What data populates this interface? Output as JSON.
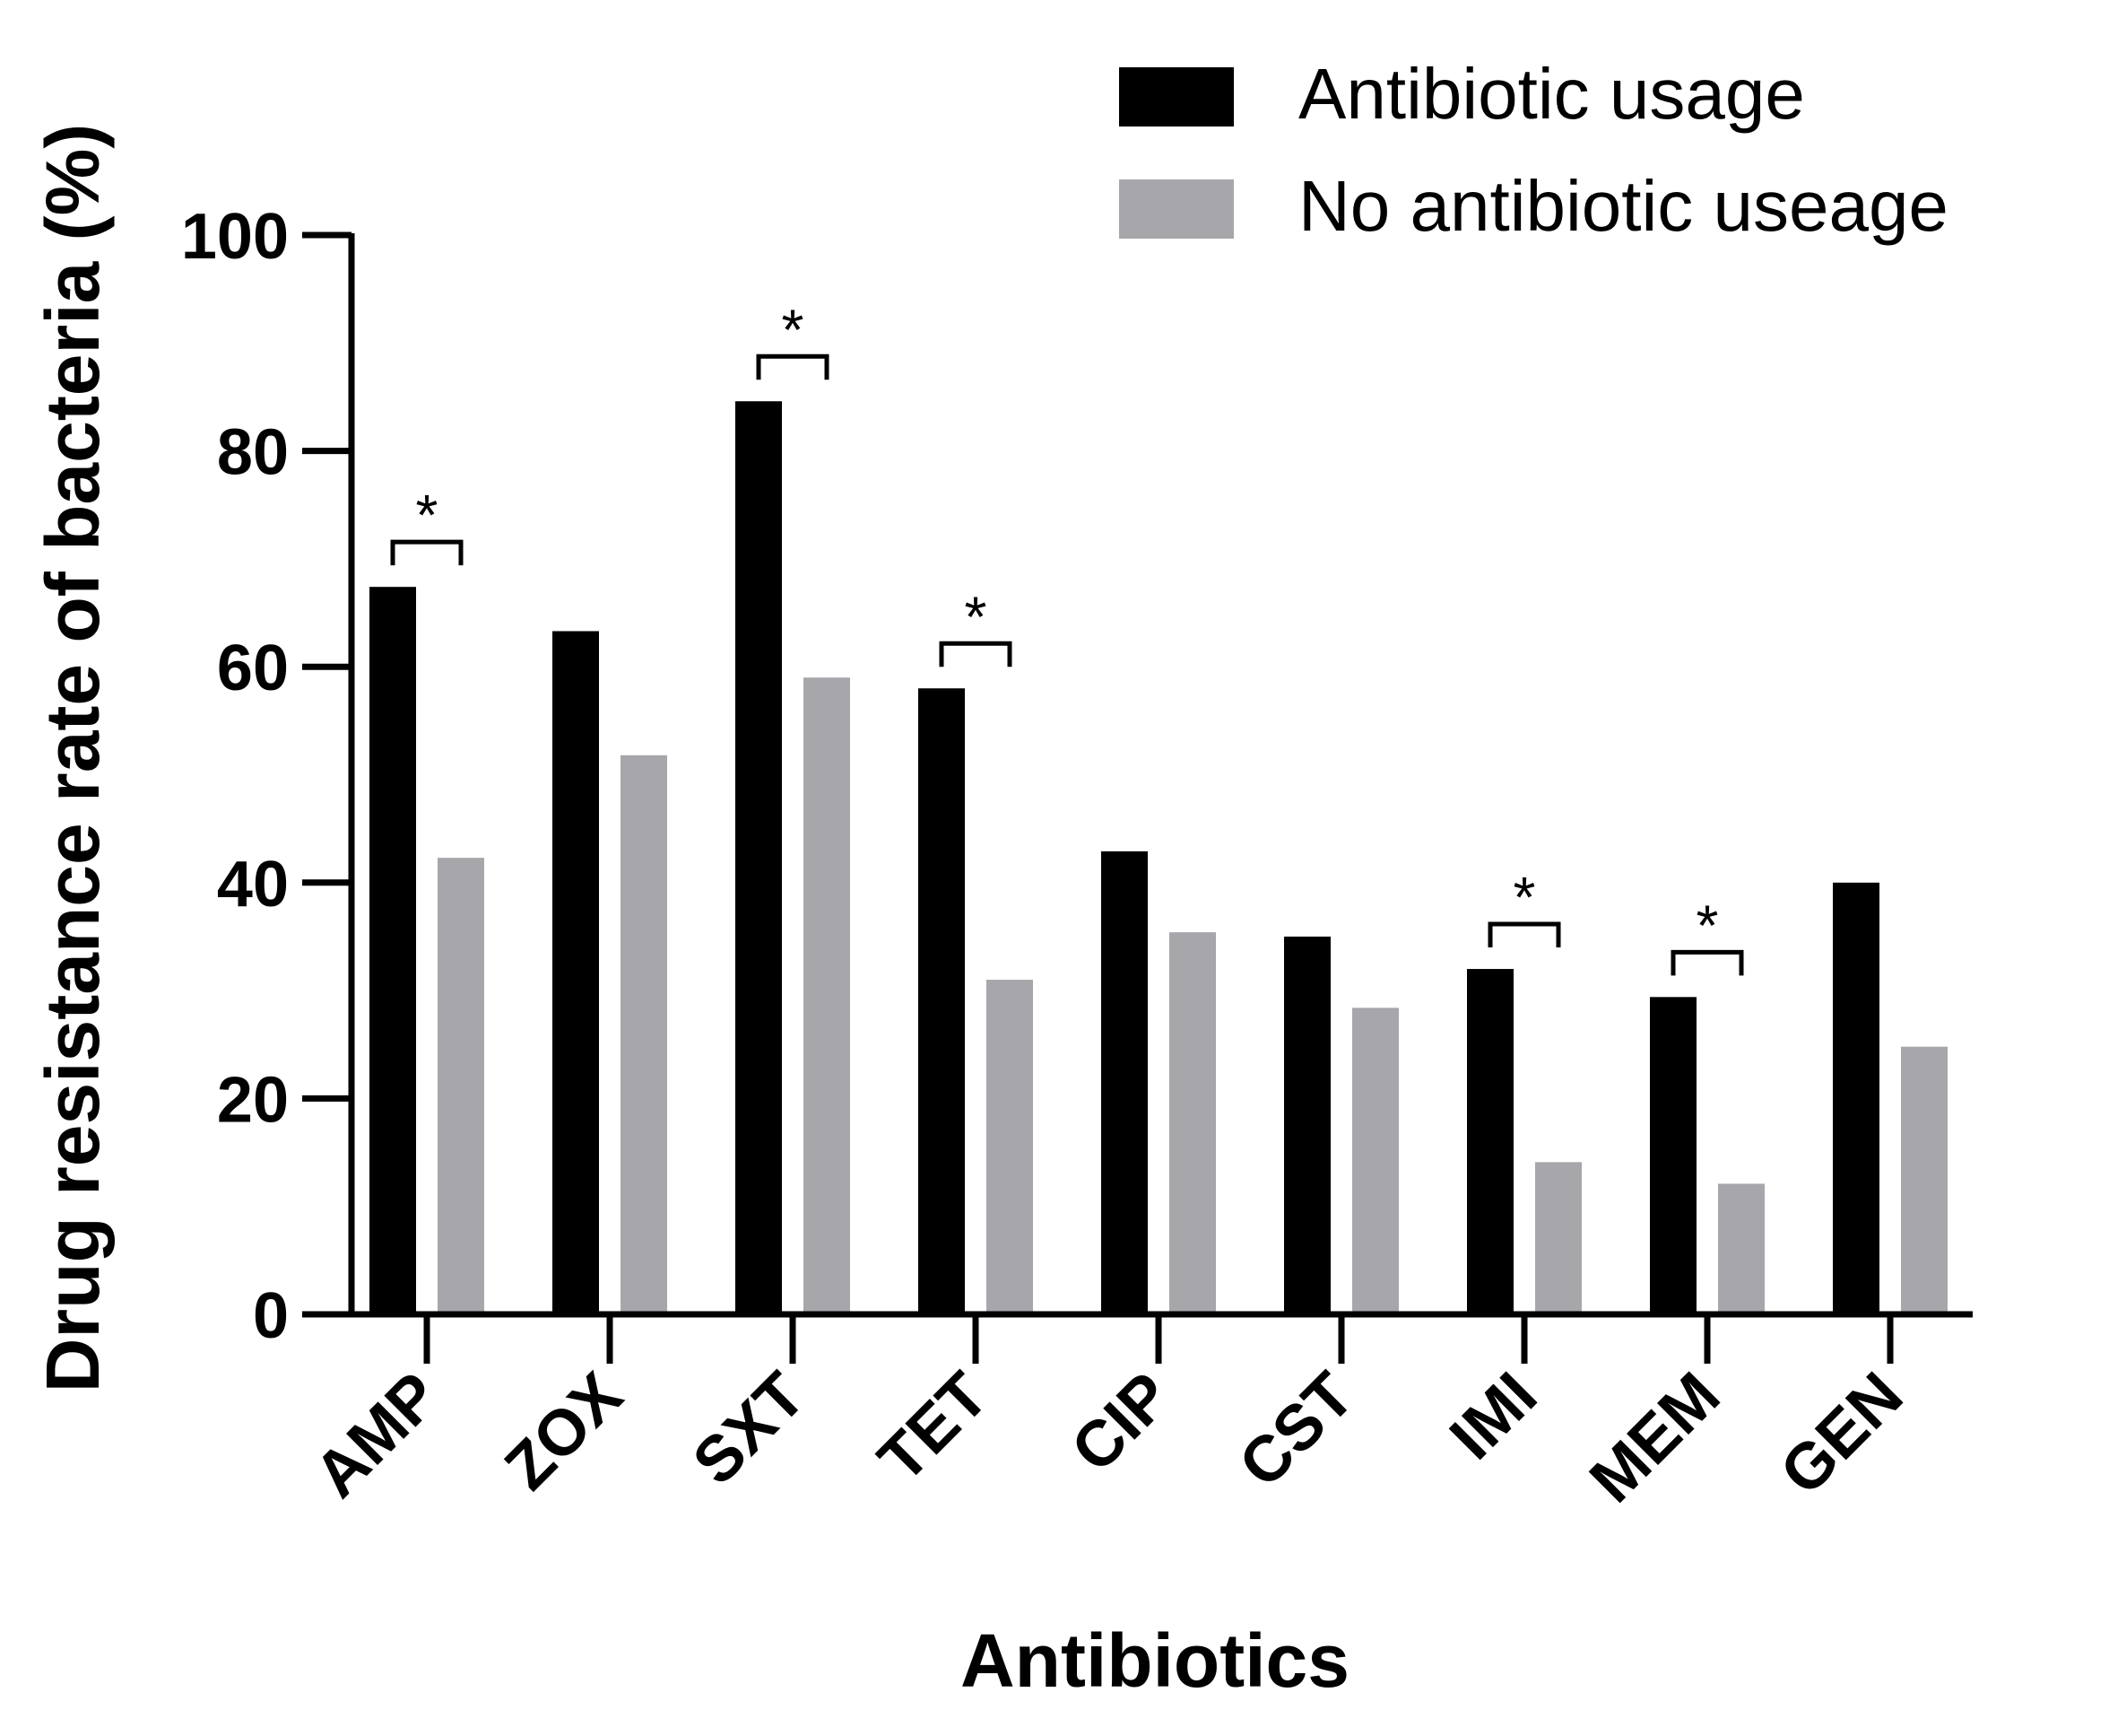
{
  "chart_data": {
    "type": "bar",
    "xlabel": "Antibiotics",
    "ylabel": "Drug resistance rate of bacteria (%)",
    "ylim": [
      0,
      100
    ],
    "yticks": [
      0,
      20,
      40,
      60,
      80,
      100
    ],
    "categories": [
      "AMP",
      "ZOX",
      "SXT",
      "TET",
      "CIP",
      "CST",
      "IMI",
      "MEM",
      "GEN"
    ],
    "series": [
      {
        "name": "Antibiotic usage",
        "color": "#000000",
        "values": [
          67.4,
          63.3,
          84.6,
          58.0,
          42.9,
          35.0,
          32.0,
          29.4,
          40.0
        ]
      },
      {
        "name": "No antibiotic useage",
        "color": "#a7a6ab",
        "values": [
          42.3,
          51.8,
          59.0,
          31.0,
          35.4,
          28.4,
          14.1,
          12.1,
          24.8
        ]
      }
    ],
    "significance": {
      "marker": "*",
      "categories": [
        "AMP",
        "SXT",
        "TET",
        "IMI",
        "MEM"
      ]
    },
    "legend_position": "top-right",
    "grid": false
  }
}
